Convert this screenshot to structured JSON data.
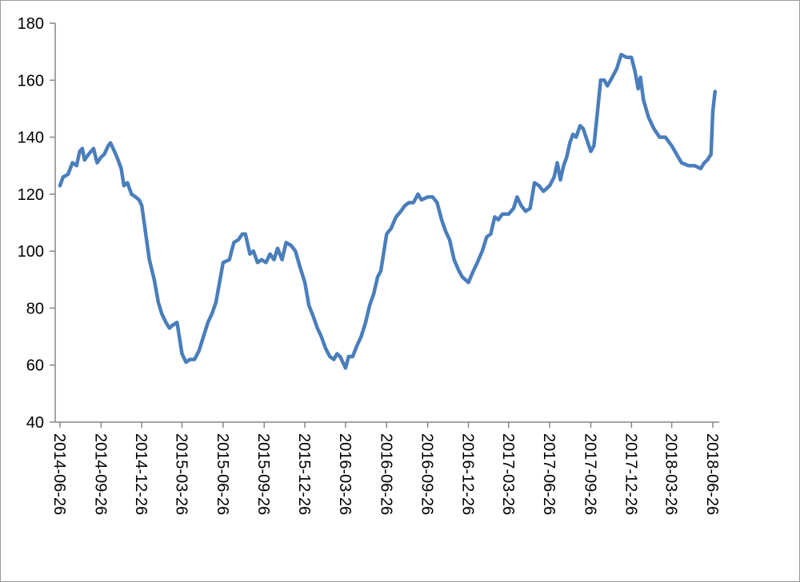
{
  "chart_data": {
    "type": "line",
    "title": "",
    "xlabel": "",
    "ylabel": "",
    "ylim": [
      40,
      180
    ],
    "y_ticks": [
      40,
      60,
      80,
      100,
      120,
      140,
      160,
      180
    ],
    "x_tick_labels": [
      "2014-06-26",
      "2014-09-26",
      "2014-12-26",
      "2015-03-26",
      "2015-06-26",
      "2015-09-26",
      "2015-12-26",
      "2016-03-26",
      "2016-06-26",
      "2016-09-26",
      "2016-12-26",
      "2017-03-26",
      "2017-06-26",
      "2017-09-26",
      "2017-12-26",
      "2018-03-26",
      "2018-06-26"
    ],
    "grid": false,
    "legend": "none",
    "line_color": "#4a7ebb",
    "series": [
      {
        "points": [
          [
            "2014-06-26",
            123
          ],
          [
            "2014-07-03",
            126
          ],
          [
            "2014-07-14",
            127
          ],
          [
            "2014-07-24",
            131
          ],
          [
            "2014-08-02",
            130
          ],
          [
            "2014-08-09",
            135
          ],
          [
            "2014-08-15",
            136
          ],
          [
            "2014-08-20",
            132
          ],
          [
            "2014-08-29",
            134
          ],
          [
            "2014-09-09",
            136
          ],
          [
            "2014-09-17",
            131
          ],
          [
            "2014-09-26",
            133
          ],
          [
            "2014-10-03",
            134
          ],
          [
            "2014-10-12",
            137
          ],
          [
            "2014-10-17",
            138
          ],
          [
            "2014-10-26",
            135
          ],
          [
            "2014-11-03",
            132
          ],
          [
            "2014-11-10",
            129
          ],
          [
            "2014-11-16",
            123
          ],
          [
            "2014-11-24",
            124
          ],
          [
            "2014-12-03",
            120
          ],
          [
            "2014-12-12",
            119
          ],
          [
            "2014-12-20",
            118
          ],
          [
            "2014-12-26",
            116
          ],
          [
            "2015-01-03",
            107
          ],
          [
            "2015-01-12",
            97
          ],
          [
            "2015-01-23",
            90
          ],
          [
            "2015-02-01",
            82
          ],
          [
            "2015-02-09",
            78
          ],
          [
            "2015-02-18",
            75
          ],
          [
            "2015-02-26",
            73
          ],
          [
            "2015-03-05",
            74
          ],
          [
            "2015-03-15",
            75
          ],
          [
            "2015-03-26",
            64
          ],
          [
            "2015-04-04",
            61
          ],
          [
            "2015-04-13",
            62
          ],
          [
            "2015-04-23",
            62
          ],
          [
            "2015-05-03",
            65
          ],
          [
            "2015-05-13",
            70
          ],
          [
            "2015-05-23",
            75
          ],
          [
            "2015-06-01",
            78
          ],
          [
            "2015-06-10",
            82
          ],
          [
            "2015-06-26",
            96
          ],
          [
            "2015-07-10",
            97
          ],
          [
            "2015-07-20",
            103
          ],
          [
            "2015-07-30",
            104
          ],
          [
            "2015-08-08",
            106
          ],
          [
            "2015-08-15",
            106
          ],
          [
            "2015-08-25",
            99
          ],
          [
            "2015-09-02",
            100
          ],
          [
            "2015-09-11",
            96
          ],
          [
            "2015-09-20",
            97
          ],
          [
            "2015-09-30",
            96
          ],
          [
            "2015-10-09",
            99
          ],
          [
            "2015-10-18",
            97
          ],
          [
            "2015-10-26",
            101
          ],
          [
            "2015-11-05",
            97
          ],
          [
            "2015-11-14",
            103
          ],
          [
            "2015-11-25",
            102
          ],
          [
            "2015-12-05",
            100
          ],
          [
            "2015-12-14",
            95
          ],
          [
            "2015-12-26",
            89
          ],
          [
            "2016-01-04",
            81
          ],
          [
            "2016-01-14",
            77
          ],
          [
            "2016-01-23",
            73
          ],
          [
            "2016-02-01",
            70
          ],
          [
            "2016-02-10",
            66
          ],
          [
            "2016-02-20",
            63
          ],
          [
            "2016-02-29",
            62
          ],
          [
            "2016-03-07",
            64
          ],
          [
            "2016-03-14",
            63
          ],
          [
            "2016-03-20",
            61
          ],
          [
            "2016-03-26",
            59
          ],
          [
            "2016-04-02",
            63
          ],
          [
            "2016-04-11",
            63
          ],
          [
            "2016-04-21",
            67
          ],
          [
            "2016-04-30",
            70
          ],
          [
            "2016-05-10",
            75
          ],
          [
            "2016-05-19",
            81
          ],
          [
            "2016-05-28",
            85
          ],
          [
            "2016-06-06",
            91
          ],
          [
            "2016-06-13",
            93
          ],
          [
            "2016-06-26",
            106
          ],
          [
            "2016-07-06",
            108
          ],
          [
            "2016-07-17",
            112
          ],
          [
            "2016-07-28",
            114
          ],
          [
            "2016-08-06",
            116
          ],
          [
            "2016-08-15",
            117
          ],
          [
            "2016-08-25",
            117
          ],
          [
            "2016-09-04",
            120
          ],
          [
            "2016-09-12",
            118
          ],
          [
            "2016-09-26",
            119
          ],
          [
            "2016-10-07",
            119
          ],
          [
            "2016-10-17",
            117
          ],
          [
            "2016-10-27",
            111
          ],
          [
            "2016-11-05",
            107
          ],
          [
            "2016-11-14",
            104
          ],
          [
            "2016-11-24",
            97
          ],
          [
            "2016-12-05",
            93
          ],
          [
            "2016-12-12",
            91
          ],
          [
            "2016-12-26",
            89
          ],
          [
            "2017-01-03",
            92
          ],
          [
            "2017-01-15",
            96
          ],
          [
            "2017-01-26",
            100
          ],
          [
            "2017-02-05",
            105
          ],
          [
            "2017-02-14",
            106
          ],
          [
            "2017-02-23",
            112
          ],
          [
            "2017-03-03",
            111
          ],
          [
            "2017-03-12",
            113
          ],
          [
            "2017-03-26",
            113
          ],
          [
            "2017-04-06",
            115
          ],
          [
            "2017-04-14",
            119
          ],
          [
            "2017-04-23",
            116
          ],
          [
            "2017-05-03",
            114
          ],
          [
            "2017-05-13",
            115
          ],
          [
            "2017-05-23",
            124
          ],
          [
            "2017-06-02",
            123
          ],
          [
            "2017-06-12",
            121
          ],
          [
            "2017-06-26",
            123
          ],
          [
            "2017-07-06",
            126
          ],
          [
            "2017-07-13",
            131
          ],
          [
            "2017-07-20",
            125
          ],
          [
            "2017-07-27",
            130
          ],
          [
            "2017-08-03",
            133
          ],
          [
            "2017-08-10",
            138
          ],
          [
            "2017-08-17",
            141
          ],
          [
            "2017-08-24",
            140
          ],
          [
            "2017-09-02",
            144
          ],
          [
            "2017-09-09",
            143
          ],
          [
            "2017-09-26",
            135
          ],
          [
            "2017-10-03",
            137
          ],
          [
            "2017-10-09",
            146
          ],
          [
            "2017-10-18",
            160
          ],
          [
            "2017-10-26",
            160
          ],
          [
            "2017-11-02",
            158
          ],
          [
            "2017-11-13",
            161
          ],
          [
            "2017-11-23",
            164
          ],
          [
            "2017-12-03",
            169
          ],
          [
            "2017-12-15",
            168
          ],
          [
            "2017-12-26",
            168
          ],
          [
            "2018-01-03",
            163
          ],
          [
            "2018-01-10",
            157
          ],
          [
            "2018-01-15",
            161
          ],
          [
            "2018-01-22",
            153
          ],
          [
            "2018-02-02",
            147
          ],
          [
            "2018-02-14",
            143
          ],
          [
            "2018-02-27",
            140
          ],
          [
            "2018-03-12",
            140
          ],
          [
            "2018-03-26",
            137
          ],
          [
            "2018-04-06",
            134
          ],
          [
            "2018-04-17",
            131
          ],
          [
            "2018-05-02",
            130
          ],
          [
            "2018-05-16",
            130
          ],
          [
            "2018-05-30",
            129
          ],
          [
            "2018-06-07",
            131
          ],
          [
            "2018-06-14",
            132
          ],
          [
            "2018-06-22",
            134
          ],
          [
            "2018-06-26",
            149
          ],
          [
            "2018-07-01",
            156
          ]
        ]
      }
    ]
  }
}
